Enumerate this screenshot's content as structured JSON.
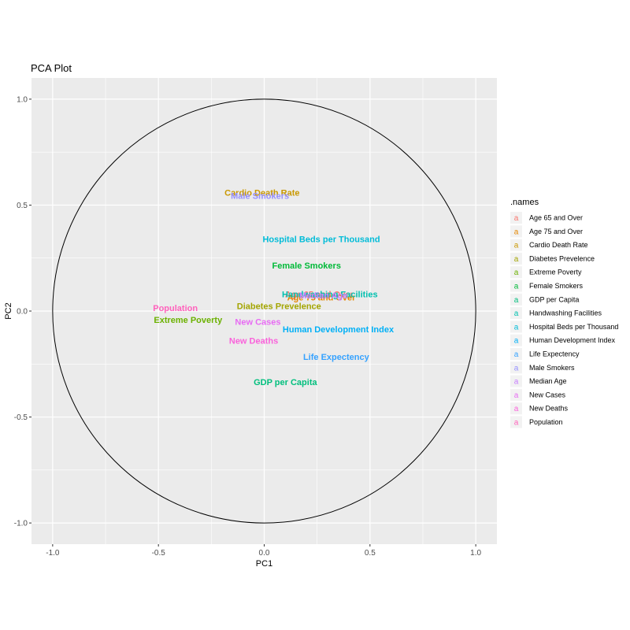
{
  "chart_data": {
    "type": "scatter",
    "title": "PCA Plot",
    "xlabel": "PC1",
    "ylabel": "PC2",
    "xlim": [
      -1.1,
      1.1
    ],
    "ylim": [
      -1.1,
      1.1
    ],
    "x_ticks": [
      -1.0,
      -0.5,
      0.0,
      0.5,
      1.0
    ],
    "y_ticks": [
      -1.0,
      -0.5,
      0.0,
      0.5,
      1.0
    ],
    "x_tick_labels": [
      "-1.0",
      "-0.5",
      "0.0",
      "0.5",
      "1.0"
    ],
    "y_tick_labels": [
      "-1.0",
      "-0.5",
      "0.0",
      "0.5",
      "1.0"
    ],
    "grid": true,
    "unit_circle": true,
    "legend": {
      "title": ".names",
      "position": "right",
      "key_glyph": "a"
    },
    "points": [
      {
        "label": "Age 65 and Over",
        "x": 0.26,
        "y": 0.08,
        "color": "#F8766D"
      },
      {
        "label": "Age 75 and Over",
        "x": 0.27,
        "y": 0.065,
        "color": "#E58700"
      },
      {
        "label": "Cardio Death Rate",
        "x": -0.01,
        "y": 0.56,
        "color": "#C99800"
      },
      {
        "label": "Diabetes Prevelence",
        "x": 0.07,
        "y": 0.025,
        "color": "#A3A500"
      },
      {
        "label": "Extreme Poverty",
        "x": -0.36,
        "y": -0.04,
        "color": "#6BB100"
      },
      {
        "label": "Female Smokers",
        "x": 0.2,
        "y": 0.215,
        "color": "#00BA38"
      },
      {
        "label": "GDP per Capita",
        "x": 0.1,
        "y": -0.335,
        "color": "#00BF7D"
      },
      {
        "label": "Handwashing Facilities",
        "x": 0.31,
        "y": 0.08,
        "color": "#00C0AF"
      },
      {
        "label": "Hospital Beds per Thousand",
        "x": 0.27,
        "y": 0.34,
        "color": "#00BCD8"
      },
      {
        "label": "Human Development Index",
        "x": 0.35,
        "y": -0.085,
        "color": "#00B0F6"
      },
      {
        "label": "Life Expectency",
        "x": 0.34,
        "y": -0.215,
        "color": "#35A2FF"
      },
      {
        "label": "Male Smokers",
        "x": -0.02,
        "y": 0.545,
        "color": "#9590FF"
      },
      {
        "label": "Median Age",
        "x": 0.28,
        "y": 0.075,
        "color": "#C77CFF"
      },
      {
        "label": "New Cases",
        "x": -0.03,
        "y": -0.05,
        "color": "#E76BF3"
      },
      {
        "label": "New Deaths",
        "x": -0.05,
        "y": -0.14,
        "color": "#FA62DB"
      },
      {
        "label": "Population",
        "x": -0.42,
        "y": 0.015,
        "color": "#FF62BC"
      }
    ]
  }
}
